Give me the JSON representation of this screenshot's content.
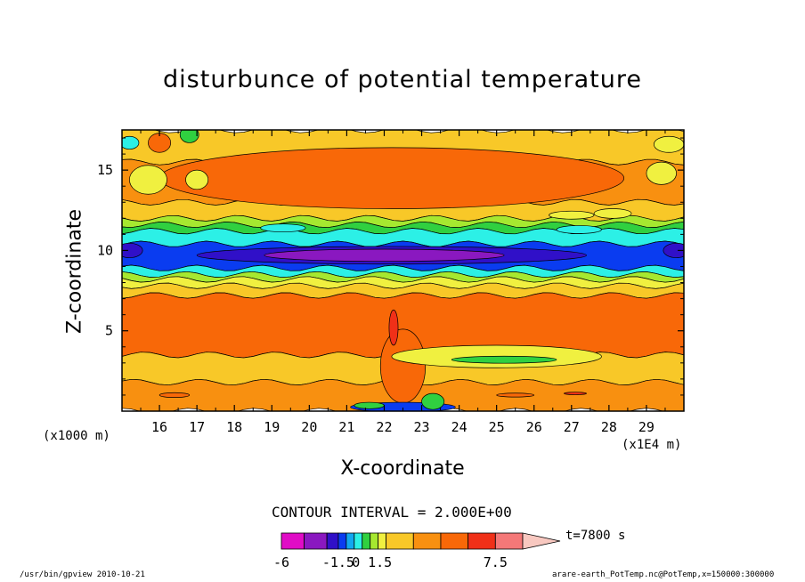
{
  "chart_data": {
    "type": "heatmap",
    "title": "disturbunce of potential temperature",
    "xlabel": "X-coordinate",
    "ylabel": "Z-coordinate",
    "x_unit_label": "(x1E4 m)",
    "y_unit_label": "(x1000 m)",
    "xlim": [
      15.0,
      30.0
    ],
    "ylim": [
      0.0,
      17.5
    ],
    "x_ticks": [
      "16",
      "17",
      "18",
      "19",
      "20",
      "21",
      "22",
      "23",
      "24",
      "25",
      "26",
      "27",
      "28",
      "29"
    ],
    "y_ticks": [
      "5",
      "10",
      "15"
    ],
    "contour_interval": "CONTOUR INTERVAL = 2.000E+00",
    "time_label": "t=7800 s",
    "colorbar": {
      "tick_labels": [
        "-6",
        "-1.5",
        "0",
        "1.5",
        "7.5"
      ],
      "colors": [
        "#e00cc6",
        "#8a18c0",
        "#3010c8",
        "#0a3cf0",
        "#12a8f0",
        "#2cf0e6",
        "#30d040",
        "#a6e830",
        "#f0f040",
        "#f8c828",
        "#f89010",
        "#f86808",
        "#f03018",
        "#f47878",
        "#f8c8c0"
      ]
    },
    "bands": [
      {
        "z0": 15.5,
        "z1": 17.5,
        "color": "#f8c828"
      },
      {
        "z0": 13.0,
        "z1": 15.5,
        "color": "#f89010"
      },
      {
        "z0": 12.0,
        "z1": 13.0,
        "color": "#f8c828"
      },
      {
        "z0": 11.6,
        "z1": 12.0,
        "color": "#a6e830"
      },
      {
        "z0": 11.2,
        "z1": 11.6,
        "color": "#30d040"
      },
      {
        "z0": 10.4,
        "z1": 11.2,
        "color": "#2cf0e6"
      },
      {
        "z0": 8.9,
        "z1": 10.4,
        "color": "#0a3cf0"
      },
      {
        "z0": 8.5,
        "z1": 8.9,
        "color": "#2cf0e6"
      },
      {
        "z0": 8.2,
        "z1": 8.5,
        "color": "#a6e830"
      },
      {
        "z0": 7.8,
        "z1": 8.2,
        "color": "#f0f040"
      },
      {
        "z0": 7.2,
        "z1": 7.8,
        "color": "#f8c828"
      },
      {
        "z0": 3.5,
        "z1": 7.2,
        "color": "#f86808"
      },
      {
        "z0": 1.8,
        "z1": 3.5,
        "color": "#f8c828"
      },
      {
        "z0": 0.0,
        "z1": 1.8,
        "color": "#f89010"
      }
    ],
    "features": [
      {
        "kind": "ellipse",
        "cx": 22.2,
        "cz": 14.5,
        "rx": 6.2,
        "rz": 1.9,
        "color": "#f86808"
      },
      {
        "kind": "ellipse",
        "cx": 22.2,
        "cz": 9.7,
        "rx": 5.2,
        "rz": 0.55,
        "color": "#3010c8"
      },
      {
        "kind": "ellipse",
        "cx": 22.0,
        "cz": 9.7,
        "rx": 3.2,
        "rz": 0.38,
        "color": "#8a18c0"
      },
      {
        "kind": "ellipse",
        "cx": 22.5,
        "cz": 2.8,
        "rx": 0.6,
        "rz": 2.3,
        "color": "#f86808"
      },
      {
        "kind": "ellipse",
        "cx": 22.25,
        "cz": 5.2,
        "rx": 0.12,
        "rz": 1.1,
        "color": "#f03018"
      },
      {
        "kind": "ellipse",
        "cx": 25.2,
        "cz": 3.2,
        "rx": 1.8,
        "rz": 0.35,
        "color": "#30d040"
      },
      {
        "kind": "ellipse",
        "cx": 25.0,
        "cz": 3.4,
        "rx": 2.8,
        "rz": 0.7,
        "color": "#f0f040"
      },
      {
        "kind": "ellipse",
        "cx": 25.2,
        "cz": 3.2,
        "rx": 1.4,
        "rz": 0.22,
        "color": "#30d040"
      },
      {
        "kind": "ellipse",
        "cx": 15.2,
        "cz": 16.7,
        "rx": 0.25,
        "rz": 0.4,
        "color": "#2cf0e6"
      },
      {
        "kind": "ellipse",
        "cx": 16.0,
        "cz": 16.7,
        "rx": 0.3,
        "rz": 0.6,
        "color": "#f86808"
      },
      {
        "kind": "ellipse",
        "cx": 16.8,
        "cz": 17.2,
        "rx": 0.25,
        "rz": 0.5,
        "color": "#30d040"
      },
      {
        "kind": "ellipse",
        "cx": 15.7,
        "cz": 14.4,
        "rx": 0.5,
        "rz": 0.9,
        "color": "#f0f040"
      },
      {
        "kind": "ellipse",
        "cx": 17.0,
        "cz": 14.4,
        "rx": 0.3,
        "rz": 0.6,
        "color": "#f0f040"
      },
      {
        "kind": "ellipse",
        "cx": 29.4,
        "cz": 14.8,
        "rx": 0.4,
        "rz": 0.7,
        "color": "#f0f040"
      },
      {
        "kind": "ellipse",
        "cx": 29.6,
        "cz": 16.6,
        "rx": 0.4,
        "rz": 0.5,
        "color": "#f0f040"
      },
      {
        "kind": "ellipse",
        "cx": 28.1,
        "cz": 12.3,
        "rx": 0.5,
        "rz": 0.3,
        "color": "#f0f040"
      },
      {
        "kind": "ellipse",
        "cx": 27.0,
        "cz": 12.2,
        "rx": 0.6,
        "rz": 0.25,
        "color": "#f0f040"
      },
      {
        "kind": "ellipse",
        "cx": 15.2,
        "cz": 10.0,
        "rx": 0.35,
        "rz": 0.45,
        "color": "#3010c8"
      },
      {
        "kind": "ellipse",
        "cx": 29.8,
        "cz": 10.0,
        "rx": 0.35,
        "rz": 0.45,
        "color": "#3010c8"
      },
      {
        "kind": "ellipse",
        "cx": 19.3,
        "cz": 11.4,
        "rx": 0.6,
        "rz": 0.25,
        "color": "#2cf0e6"
      },
      {
        "kind": "ellipse",
        "cx": 27.2,
        "cz": 11.3,
        "rx": 0.6,
        "rz": 0.25,
        "color": "#2cf0e6"
      },
      {
        "kind": "ellipse",
        "cx": 22.5,
        "cz": 0.25,
        "rx": 1.4,
        "rz": 0.3,
        "color": "#0a3cf0"
      },
      {
        "kind": "ellipse",
        "cx": 21.6,
        "cz": 0.35,
        "rx": 0.4,
        "rz": 0.2,
        "color": "#30d040"
      },
      {
        "kind": "ellipse",
        "cx": 23.3,
        "cz": 0.6,
        "rx": 0.3,
        "rz": 0.5,
        "color": "#30d040"
      },
      {
        "kind": "ellipse",
        "cx": 27.1,
        "cz": 1.1,
        "rx": 0.3,
        "rz": 0.08,
        "color": "#f03018"
      },
      {
        "kind": "ellipse",
        "cx": 16.4,
        "cz": 1.0,
        "rx": 0.4,
        "rz": 0.15,
        "color": "#f86808"
      },
      {
        "kind": "ellipse",
        "cx": 25.5,
        "cz": 1.0,
        "rx": 0.5,
        "rz": 0.12,
        "color": "#f86808"
      }
    ]
  },
  "footer": {
    "left": "/usr/bin/gpview   2010-10-21",
    "right": "arare-earth_PotTemp.nc@PotTemp,x=150000:300000"
  }
}
